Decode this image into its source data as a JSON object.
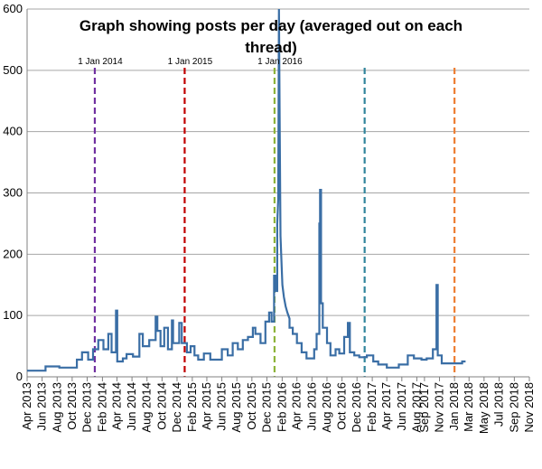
{
  "chart_data": {
    "type": "line",
    "title_line1": "Graph showing posts per day (averaged out on each",
    "title_line2": "thread)",
    "xlabel": "",
    "ylabel": "",
    "ylim": [
      0,
      600
    ],
    "yticks": [
      "0",
      "100",
      "200",
      "300",
      "400",
      "500",
      "600"
    ],
    "grid": "horizontal",
    "legend": "none",
    "xlim": [
      "2013-04-01",
      "2018-11-01"
    ],
    "xtick_labels": [
      "Apr 2013",
      "Jun 2013",
      "Aug 2013",
      "Oct 2013",
      "Dec 2013",
      "Feb 2014",
      "Apr 2014",
      "Jun 2014",
      "Aug 2014",
      "Oct 2014",
      "Dec 2014",
      "Feb 2015",
      "Apr 2015",
      "Jun 2015",
      "Aug 2015",
      "Oct 2015",
      "Dec 2015",
      "Feb 2016",
      "Apr 2016",
      "Jun 2016",
      "Aug 2016",
      "Oct 2016",
      "Dec 2016",
      "Feb 2017",
      "Apr 2017",
      "Jun 2017",
      "Aug 2017",
      "Sep 2017",
      "Nov 2017",
      "Jan 2018",
      "Mar 2018",
      "May 2018",
      "Jul 2018",
      "Sep 2018",
      "Nov 2018"
    ],
    "xtick_dates": [
      "2013-04-01",
      "2013-06-01",
      "2013-08-01",
      "2013-10-01",
      "2013-12-01",
      "2014-02-01",
      "2014-04-01",
      "2014-06-01",
      "2014-08-01",
      "2014-10-01",
      "2014-12-01",
      "2015-02-01",
      "2015-04-01",
      "2015-06-01",
      "2015-08-01",
      "2015-10-01",
      "2015-12-01",
      "2016-02-01",
      "2016-04-01",
      "2016-06-01",
      "2016-08-01",
      "2016-10-01",
      "2016-12-01",
      "2017-02-01",
      "2017-04-01",
      "2017-06-01",
      "2017-08-01",
      "2017-09-01",
      "2017-11-01",
      "2018-01-01",
      "2018-03-01",
      "2018-05-01",
      "2018-07-01",
      "2018-09-01",
      "2018-11-01"
    ],
    "annotations": [
      {
        "label": "1 Jan 2014",
        "date": "2014-01-01",
        "color": "#7030A0"
      },
      {
        "label": "1 Jan 2015",
        "date": "2015-01-01",
        "color": "#C00000"
      },
      {
        "label": "1 Jan 2016",
        "date": "2016-01-01",
        "color": "#8DB33A"
      },
      {
        "label": "",
        "date": "2017-01-01",
        "color": "#31859C"
      },
      {
        "label": "",
        "date": "2018-01-01",
        "color": "#ED7D31"
      }
    ],
    "series": [
      {
        "color": "#3A6EA5",
        "points": [
          [
            "2013-04-01",
            10
          ],
          [
            "2013-06-15",
            10
          ],
          [
            "2013-06-15",
            17
          ],
          [
            "2013-08-10",
            17
          ],
          [
            "2013-08-10",
            15
          ],
          [
            "2013-10-20",
            15
          ],
          [
            "2013-10-20",
            28
          ],
          [
            "2013-11-10",
            28
          ],
          [
            "2013-11-10",
            40
          ],
          [
            "2013-12-05",
            40
          ],
          [
            "2013-12-05",
            28
          ],
          [
            "2013-12-25",
            28
          ],
          [
            "2013-12-25",
            45
          ],
          [
            "2014-01-15",
            45
          ],
          [
            "2014-01-15",
            60
          ],
          [
            "2014-02-05",
            60
          ],
          [
            "2014-02-05",
            45
          ],
          [
            "2014-02-25",
            45
          ],
          [
            "2014-02-25",
            70
          ],
          [
            "2014-03-10",
            70
          ],
          [
            "2014-03-10",
            40
          ],
          [
            "2014-03-28",
            40
          ],
          [
            "2014-03-28",
            108
          ],
          [
            "2014-04-02",
            108
          ],
          [
            "2014-04-02",
            25
          ],
          [
            "2014-04-25",
            25
          ],
          [
            "2014-04-25",
            30
          ],
          [
            "2014-05-10",
            30
          ],
          [
            "2014-05-10",
            37
          ],
          [
            "2014-06-05",
            37
          ],
          [
            "2014-06-05",
            33
          ],
          [
            "2014-07-01",
            33
          ],
          [
            "2014-07-01",
            70
          ],
          [
            "2014-07-15",
            70
          ],
          [
            "2014-07-15",
            50
          ],
          [
            "2014-08-10",
            50
          ],
          [
            "2014-08-10",
            60
          ],
          [
            "2014-09-05",
            60
          ],
          [
            "2014-09-05",
            98
          ],
          [
            "2014-09-12",
            98
          ],
          [
            "2014-09-12",
            75
          ],
          [
            "2014-09-25",
            75
          ],
          [
            "2014-09-25",
            50
          ],
          [
            "2014-10-10",
            50
          ],
          [
            "2014-10-10",
            80
          ],
          [
            "2014-10-25",
            80
          ],
          [
            "2014-10-25",
            45
          ],
          [
            "2014-11-10",
            45
          ],
          [
            "2014-11-10",
            92
          ],
          [
            "2014-11-15",
            92
          ],
          [
            "2014-11-15",
            55
          ],
          [
            "2014-12-10",
            55
          ],
          [
            "2014-12-10",
            88
          ],
          [
            "2014-12-20",
            88
          ],
          [
            "2014-12-20",
            55
          ],
          [
            "2015-01-10",
            55
          ],
          [
            "2015-01-10",
            40
          ],
          [
            "2015-01-25",
            40
          ],
          [
            "2015-01-25",
            50
          ],
          [
            "2015-02-10",
            50
          ],
          [
            "2015-02-10",
            35
          ],
          [
            "2015-02-25",
            35
          ],
          [
            "2015-02-25",
            28
          ],
          [
            "2015-03-20",
            28
          ],
          [
            "2015-03-20",
            38
          ],
          [
            "2015-04-15",
            38
          ],
          [
            "2015-04-15",
            28
          ],
          [
            "2015-06-01",
            28
          ],
          [
            "2015-06-01",
            45
          ],
          [
            "2015-06-25",
            45
          ],
          [
            "2015-06-25",
            35
          ],
          [
            "2015-07-15",
            35
          ],
          [
            "2015-07-15",
            55
          ],
          [
            "2015-08-05",
            55
          ],
          [
            "2015-08-05",
            45
          ],
          [
            "2015-08-25",
            45
          ],
          [
            "2015-08-25",
            60
          ],
          [
            "2015-09-15",
            60
          ],
          [
            "2015-09-15",
            65
          ],
          [
            "2015-10-05",
            65
          ],
          [
            "2015-10-05",
            80
          ],
          [
            "2015-10-15",
            80
          ],
          [
            "2015-10-15",
            70
          ],
          [
            "2015-11-05",
            70
          ],
          [
            "2015-11-05",
            55
          ],
          [
            "2015-11-25",
            55
          ],
          [
            "2015-11-25",
            90
          ],
          [
            "2015-12-10",
            90
          ],
          [
            "2015-12-10",
            105
          ],
          [
            "2015-12-20",
            105
          ],
          [
            "2015-12-20",
            90
          ],
          [
            "2015-12-30",
            90
          ],
          [
            "2015-12-30",
            165
          ],
          [
            "2016-01-05",
            165
          ],
          [
            "2016-01-05",
            140
          ],
          [
            "2016-01-12",
            140
          ],
          [
            "2016-01-12",
            250
          ],
          [
            "2016-01-16",
            290
          ],
          [
            "2016-01-19",
            600
          ],
          [
            "2016-01-22",
            420
          ],
          [
            "2016-01-25",
            230
          ],
          [
            "2016-02-02",
            150
          ],
          [
            "2016-02-08",
            130
          ],
          [
            "2016-02-15",
            115
          ],
          [
            "2016-02-22",
            105
          ],
          [
            "2016-03-02",
            95
          ],
          [
            "2016-03-02",
            80
          ],
          [
            "2016-03-15",
            80
          ],
          [
            "2016-03-15",
            70
          ],
          [
            "2016-04-01",
            70
          ],
          [
            "2016-04-01",
            55
          ],
          [
            "2016-04-20",
            55
          ],
          [
            "2016-04-20",
            40
          ],
          [
            "2016-05-10",
            40
          ],
          [
            "2016-05-10",
            30
          ],
          [
            "2016-06-10",
            30
          ],
          [
            "2016-06-10",
            45
          ],
          [
            "2016-06-20",
            45
          ],
          [
            "2016-06-20",
            70
          ],
          [
            "2016-07-01",
            70
          ],
          [
            "2016-07-01",
            250
          ],
          [
            "2016-07-04",
            250
          ],
          [
            "2016-07-04",
            305
          ],
          [
            "2016-07-08",
            305
          ],
          [
            "2016-07-08",
            120
          ],
          [
            "2016-07-15",
            120
          ],
          [
            "2016-07-15",
            80
          ],
          [
            "2016-08-01",
            80
          ],
          [
            "2016-08-01",
            55
          ],
          [
            "2016-08-15",
            55
          ],
          [
            "2016-08-15",
            35
          ],
          [
            "2016-09-05",
            35
          ],
          [
            "2016-09-05",
            45
          ],
          [
            "2016-09-20",
            45
          ],
          [
            "2016-09-20",
            38
          ],
          [
            "2016-10-10",
            38
          ],
          [
            "2016-10-10",
            65
          ],
          [
            "2016-10-25",
            65
          ],
          [
            "2016-10-25",
            88
          ],
          [
            "2016-11-02",
            88
          ],
          [
            "2016-11-02",
            40
          ],
          [
            "2016-11-20",
            40
          ],
          [
            "2016-11-20",
            35
          ],
          [
            "2016-12-10",
            35
          ],
          [
            "2016-12-10",
            32
          ],
          [
            "2017-01-10",
            32
          ],
          [
            "2017-01-10",
            35
          ],
          [
            "2017-02-05",
            35
          ],
          [
            "2017-02-05",
            25
          ],
          [
            "2017-02-25",
            25
          ],
          [
            "2017-02-25",
            20
          ],
          [
            "2017-04-01",
            20
          ],
          [
            "2017-04-01",
            15
          ],
          [
            "2017-05-20",
            15
          ],
          [
            "2017-05-20",
            20
          ],
          [
            "2017-06-25",
            20
          ],
          [
            "2017-06-25",
            35
          ],
          [
            "2017-07-20",
            35
          ],
          [
            "2017-07-20",
            30
          ],
          [
            "2017-08-20",
            30
          ],
          [
            "2017-08-20",
            28
          ],
          [
            "2017-09-10",
            28
          ],
          [
            "2017-09-10",
            30
          ],
          [
            "2017-10-05",
            30
          ],
          [
            "2017-10-05",
            45
          ],
          [
            "2017-10-20",
            45
          ],
          [
            "2017-10-20",
            150
          ],
          [
            "2017-10-25",
            150
          ],
          [
            "2017-10-25",
            35
          ],
          [
            "2017-11-10",
            35
          ],
          [
            "2017-11-10",
            22
          ],
          [
            "2018-02-01",
            22
          ],
          [
            "2018-02-01",
            25
          ],
          [
            "2018-02-15",
            25
          ]
        ]
      }
    ]
  }
}
